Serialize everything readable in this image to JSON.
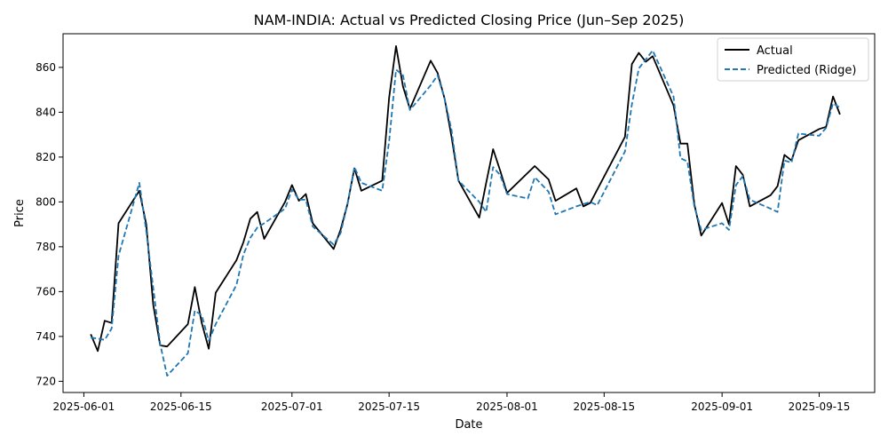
{
  "chart_data": {
    "type": "line",
    "title": "NAM-INDIA: Actual vs Predicted Closing Price (Jun–Sep 2025)",
    "xlabel": "Date",
    "ylabel": "Price",
    "xlim": [
      "2025-05-29",
      "2025-09-23"
    ],
    "ylim": [
      715,
      875
    ],
    "x_ticks": [
      "2025-06-01",
      "2025-06-15",
      "2025-07-01",
      "2025-07-15",
      "2025-08-01",
      "2025-08-15",
      "2025-09-01",
      "2025-09-15"
    ],
    "y_ticks": [
      720,
      740,
      760,
      780,
      800,
      820,
      840,
      860
    ],
    "legend_position": "top-right",
    "grid": false,
    "series": [
      {
        "name": "Actual",
        "color": "#000000",
        "style": "solid",
        "points": [
          [
            "2025-06-02",
            741
          ],
          [
            "2025-06-03",
            733.5
          ],
          [
            "2025-06-04",
            747
          ],
          [
            "2025-06-05",
            746
          ],
          [
            "2025-06-06",
            790.5
          ],
          [
            "2025-06-09",
            805
          ],
          [
            "2025-06-10",
            790
          ],
          [
            "2025-06-11",
            754
          ],
          [
            "2025-06-12",
            736
          ],
          [
            "2025-06-13",
            735.5
          ],
          [
            "2025-06-16",
            745.5
          ],
          [
            "2025-06-17",
            762
          ],
          [
            "2025-06-18",
            746
          ],
          [
            "2025-06-19",
            734.5
          ],
          [
            "2025-06-20",
            759.5
          ],
          [
            "2025-06-23",
            774
          ],
          [
            "2025-06-24",
            782
          ],
          [
            "2025-06-25",
            792.5
          ],
          [
            "2025-06-26",
            795.5
          ],
          [
            "2025-06-27",
            783.5
          ],
          [
            "2025-06-30",
            800
          ],
          [
            "2025-07-01",
            807.5
          ],
          [
            "2025-07-02",
            800.5
          ],
          [
            "2025-07-03",
            803.5
          ],
          [
            "2025-07-04",
            790.5
          ],
          [
            "2025-07-07",
            779
          ],
          [
            "2025-07-08",
            787.5
          ],
          [
            "2025-07-09",
            799
          ],
          [
            "2025-07-10",
            815
          ],
          [
            "2025-07-11",
            805
          ],
          [
            "2025-07-14",
            809.5
          ],
          [
            "2025-07-15",
            846.5
          ],
          [
            "2025-07-16",
            869.5
          ],
          [
            "2025-07-17",
            851.5
          ],
          [
            "2025-07-18",
            841.5
          ],
          [
            "2025-07-21",
            863
          ],
          [
            "2025-07-22",
            857.5
          ],
          [
            "2025-07-23",
            846
          ],
          [
            "2025-07-24",
            829
          ],
          [
            "2025-07-25",
            809.5
          ],
          [
            "2025-07-28",
            793
          ],
          [
            "2025-07-29",
            808.5
          ],
          [
            "2025-07-30",
            823.5
          ],
          [
            "2025-07-31",
            814
          ],
          [
            "2025-08-01",
            804
          ],
          [
            "2025-08-05",
            816
          ],
          [
            "2025-08-07",
            810
          ],
          [
            "2025-08-08",
            800.5
          ],
          [
            "2025-08-11",
            806
          ],
          [
            "2025-08-12",
            798
          ],
          [
            "2025-08-13",
            799.5
          ],
          [
            "2025-08-18",
            829
          ],
          [
            "2025-08-19",
            861.5
          ],
          [
            "2025-08-20",
            866.5
          ],
          [
            "2025-08-21",
            862.5
          ],
          [
            "2025-08-22",
            865
          ],
          [
            "2025-08-25",
            843
          ],
          [
            "2025-08-26",
            826
          ],
          [
            "2025-08-27",
            826
          ],
          [
            "2025-08-28",
            799
          ],
          [
            "2025-08-29",
            785
          ],
          [
            "2025-09-01",
            799.5
          ],
          [
            "2025-09-02",
            790
          ],
          [
            "2025-09-03",
            816
          ],
          [
            "2025-09-04",
            812
          ],
          [
            "2025-09-05",
            798
          ],
          [
            "2025-09-08",
            803
          ],
          [
            "2025-09-09",
            807
          ],
          [
            "2025-09-10",
            821
          ],
          [
            "2025-09-11",
            818.5
          ],
          [
            "2025-09-12",
            827.5
          ],
          [
            "2025-09-15",
            832.5
          ],
          [
            "2025-09-16",
            833.5
          ],
          [
            "2025-09-17",
            847
          ],
          [
            "2025-09-18",
            839
          ]
        ]
      },
      {
        "name": "Predicted (Ridge)",
        "color": "#1f77b4",
        "style": "dashed",
        "points": [
          [
            "2025-06-02",
            739.5
          ],
          [
            "2025-06-03",
            739
          ],
          [
            "2025-06-04",
            738.5
          ],
          [
            "2025-06-05",
            743.5
          ],
          [
            "2025-06-06",
            776
          ],
          [
            "2025-06-09",
            808.5
          ],
          [
            "2025-06-10",
            787
          ],
          [
            "2025-06-11",
            761.5
          ],
          [
            "2025-06-12",
            736.5
          ],
          [
            "2025-06-13",
            722.5
          ],
          [
            "2025-06-16",
            732.5
          ],
          [
            "2025-06-17",
            751.5
          ],
          [
            "2025-06-18",
            749.5
          ],
          [
            "2025-06-19",
            738
          ],
          [
            "2025-06-20",
            745.5
          ],
          [
            "2025-06-23",
            763
          ],
          [
            "2025-06-24",
            776.5
          ],
          [
            "2025-06-25",
            784
          ],
          [
            "2025-06-26",
            788.5
          ],
          [
            "2025-06-27",
            790.5
          ],
          [
            "2025-06-30",
            797
          ],
          [
            "2025-07-01",
            805.5
          ],
          [
            "2025-07-02",
            801
          ],
          [
            "2025-07-03",
            801
          ],
          [
            "2025-07-04",
            789
          ],
          [
            "2025-07-07",
            781
          ],
          [
            "2025-07-08",
            786
          ],
          [
            "2025-07-09",
            799
          ],
          [
            "2025-07-10",
            815.5
          ],
          [
            "2025-07-11",
            808.5
          ],
          [
            "2025-07-14",
            805
          ],
          [
            "2025-07-15",
            827
          ],
          [
            "2025-07-16",
            859
          ],
          [
            "2025-07-17",
            856.5
          ],
          [
            "2025-07-18",
            841
          ],
          [
            "2025-07-21",
            852
          ],
          [
            "2025-07-22",
            856.5
          ],
          [
            "2025-07-23",
            846
          ],
          [
            "2025-07-24",
            832
          ],
          [
            "2025-07-25",
            809.5
          ],
          [
            "2025-07-28",
            800
          ],
          [
            "2025-07-29",
            795.5
          ],
          [
            "2025-07-30",
            815.5
          ],
          [
            "2025-07-31",
            812
          ],
          [
            "2025-08-01",
            803.5
          ],
          [
            "2025-08-04",
            801.5
          ],
          [
            "2025-08-05",
            811
          ],
          [
            "2025-08-07",
            804.5
          ],
          [
            "2025-08-08",
            794.5
          ],
          [
            "2025-08-11",
            798
          ],
          [
            "2025-08-13",
            800
          ],
          [
            "2025-08-14",
            798.5
          ],
          [
            "2025-08-18",
            822.5
          ],
          [
            "2025-08-19",
            843.5
          ],
          [
            "2025-08-20",
            859.5
          ],
          [
            "2025-08-22",
            867.5
          ],
          [
            "2025-08-25",
            847
          ],
          [
            "2025-08-26",
            819.5
          ],
          [
            "2025-08-27",
            818
          ],
          [
            "2025-08-28",
            798
          ],
          [
            "2025-08-29",
            787.5
          ],
          [
            "2025-09-01",
            790.5
          ],
          [
            "2025-09-02",
            787.5
          ],
          [
            "2025-09-03",
            807.5
          ],
          [
            "2025-09-04",
            811.5
          ],
          [
            "2025-09-05",
            801
          ],
          [
            "2025-09-08",
            797
          ],
          [
            "2025-09-09",
            795.5
          ],
          [
            "2025-09-10",
            818.5
          ],
          [
            "2025-09-11",
            817.5
          ],
          [
            "2025-09-12",
            830.5
          ],
          [
            "2025-09-15",
            829.5
          ],
          [
            "2025-09-16",
            833
          ],
          [
            "2025-09-17",
            844
          ],
          [
            "2025-09-18",
            842
          ]
        ]
      }
    ]
  }
}
